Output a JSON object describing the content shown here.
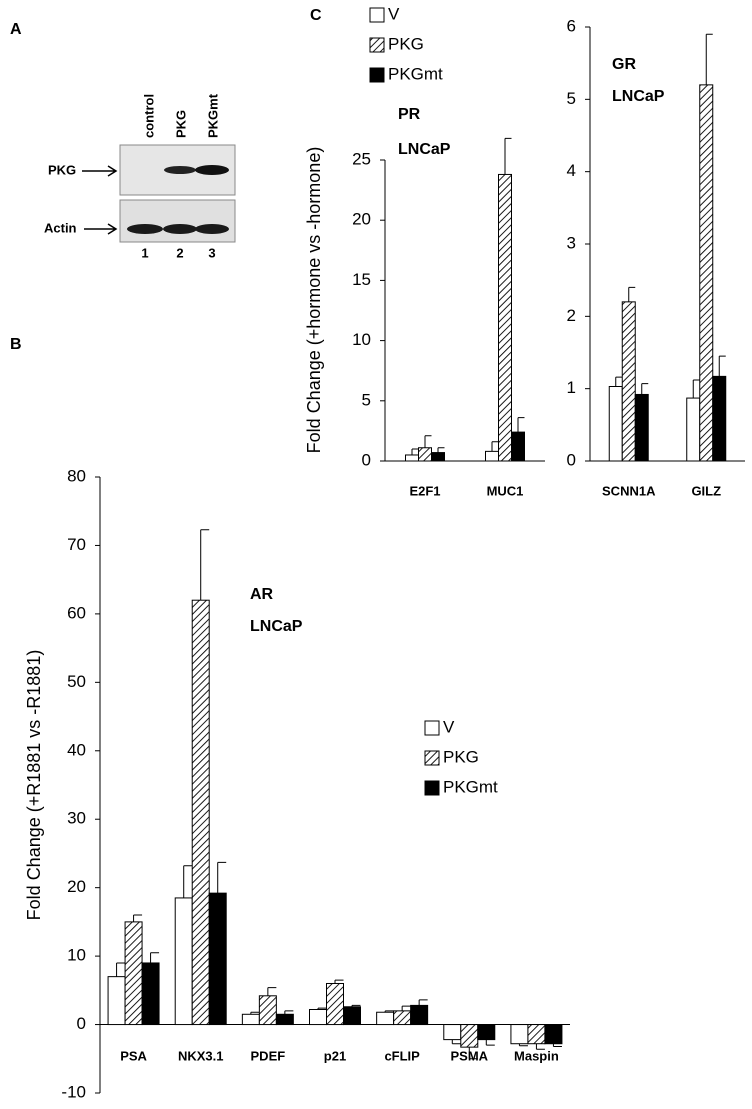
{
  "panels": [
    "A",
    "B",
    "C"
  ],
  "blot": {
    "lanes": [
      "control",
      "PKG",
      "PKGmt"
    ],
    "rows": [
      "PKG",
      "Actin"
    ],
    "numbers": [
      "1",
      "2",
      "3"
    ]
  },
  "chart_data": [
    {
      "type": "bar",
      "ylabel": "Fold Change (+R1881 vs -R1881)",
      "annotation": [
        "AR",
        "LNCaP"
      ],
      "categories": [
        "PSA",
        "NKX3.1",
        "PDEF",
        "p21",
        "cFLIP",
        "PSMA",
        "Maspin"
      ],
      "series": [
        {
          "name": "V",
          "color": "#ffffff",
          "values": [
            7,
            18.5,
            1.5,
            2.2,
            1.8,
            -2.2,
            -2.8
          ],
          "errors": [
            2,
            4.7,
            0.3,
            0.2,
            0.2,
            0.6,
            0.3
          ]
        },
        {
          "name": "PKG",
          "color": "#ffffff",
          "hatch": true,
          "values": [
            15,
            62,
            4.2,
            6,
            2,
            -3.3,
            -2.8
          ],
          "errors": [
            1,
            10.3,
            1.2,
            0.5,
            0.7,
            1.7,
            0.8
          ]
        },
        {
          "name": "PKGmt",
          "color": "#000000",
          "values": [
            9,
            19.2,
            1.5,
            2.6,
            2.8,
            -2.2,
            -2.8
          ],
          "errors": [
            1.5,
            4.5,
            0.5,
            0.2,
            0.8,
            0.8,
            0.4
          ]
        }
      ],
      "ylim": [
        -10,
        80
      ],
      "yticks": [
        -10,
        0,
        10,
        20,
        30,
        40,
        50,
        60,
        70,
        80
      ],
      "legend": true
    },
    {
      "type": "bar",
      "ylabel": "Fold Change (+hormone vs -hormone)",
      "annotation": [
        "PR",
        "LNCaP"
      ],
      "categories": [
        "E2F1",
        "MUC1"
      ],
      "series": [
        {
          "name": "V",
          "color": "#ffffff",
          "values": [
            0.5,
            0.8
          ],
          "errors": [
            0.5,
            0.8
          ]
        },
        {
          "name": "PKG",
          "color": "#ffffff",
          "hatch": true,
          "values": [
            1.1,
            23.8
          ],
          "errors": [
            1,
            3
          ]
        },
        {
          "name": "PKGmt",
          "color": "#000000",
          "values": [
            0.7,
            2.4
          ],
          "errors": [
            0.4,
            1.2
          ]
        }
      ],
      "ylim": [
        0,
        25
      ],
      "yticks": [
        0,
        5,
        10,
        15,
        20,
        25
      ],
      "legend": true
    },
    {
      "type": "bar",
      "annotation": [
        "GR",
        "LNCaP"
      ],
      "categories": [
        "SCNN1A",
        "GILZ"
      ],
      "series": [
        {
          "color": "#ffffff",
          "values": [
            1.03,
            0.87
          ],
          "errors": [
            0.13,
            0.25
          ]
        },
        {
          "color": "#ffffff",
          "hatch": true,
          "values": [
            2.2,
            5.2
          ],
          "errors": [
            0.2,
            0.7
          ]
        },
        {
          "color": "#000000",
          "values": [
            0.92,
            1.17
          ],
          "errors": [
            0.15,
            0.28
          ]
        }
      ],
      "ylim": [
        0,
        6
      ],
      "yticks": [
        0,
        1,
        2,
        3,
        4,
        5,
        6
      ],
      "legend": false
    }
  ]
}
